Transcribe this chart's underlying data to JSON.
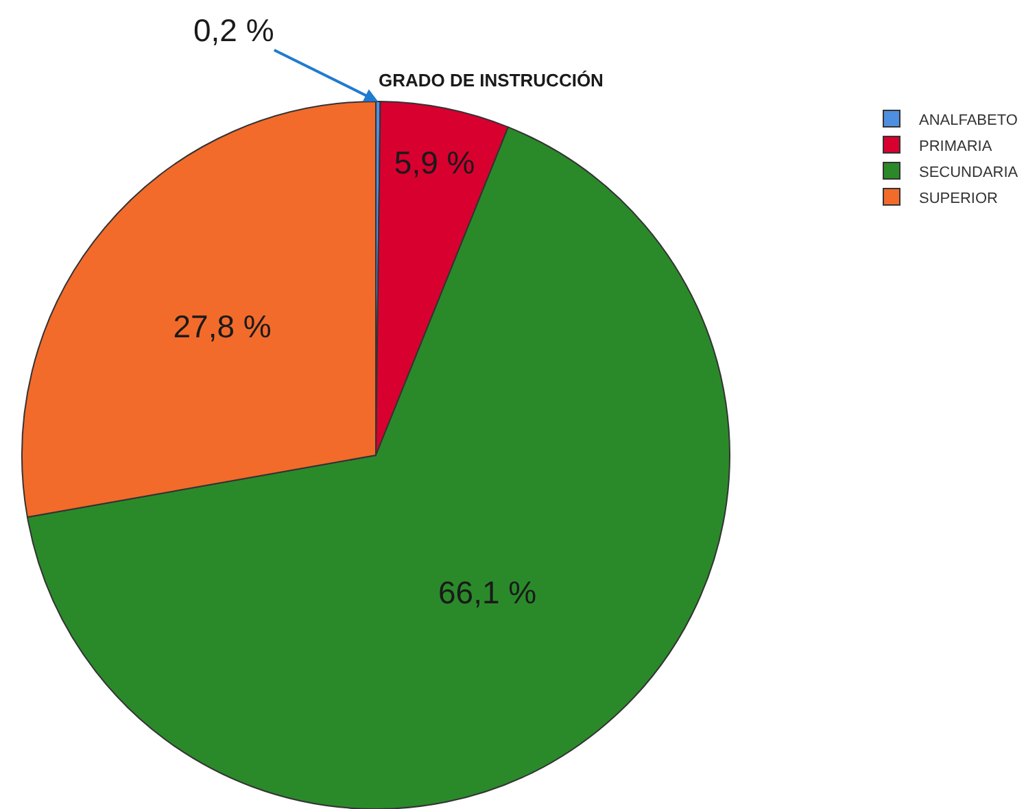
{
  "chart_data": {
    "type": "pie",
    "title": "GRADO DE INSTRUCCIÓN",
    "categories": [
      "ANALFABETO",
      "PRIMARIA",
      "SECUNDARIA",
      "SUPERIOR"
    ],
    "values": [
      0.2,
      5.9,
      66.1,
      27.8
    ],
    "colors": [
      "#4f8fe0",
      "#d8002f",
      "#2a8a2a",
      "#f26b2b"
    ],
    "value_labels": [
      "0,2 %",
      "5,9 %",
      "66,1 %",
      "27,8 %"
    ],
    "legend": "top right"
  }
}
